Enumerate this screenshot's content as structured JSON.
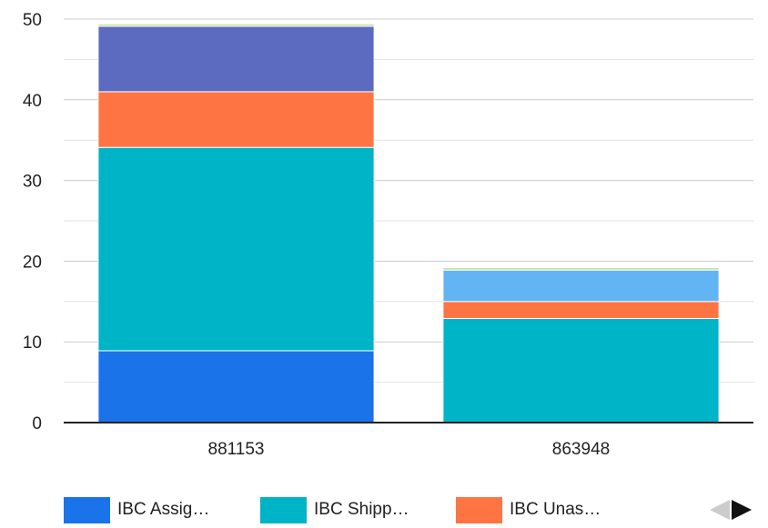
{
  "chart_data": {
    "type": "bar",
    "stacked": true,
    "categories": [
      "881153",
      "863948"
    ],
    "ylim": [
      0,
      50
    ],
    "yticks": [
      0,
      10,
      20,
      30,
      40,
      50
    ],
    "grid": true,
    "series": [
      {
        "name": "IBC Assig…",
        "color": "#1a73e8",
        "values": [
          8.9,
          0
        ]
      },
      {
        "name": "IBC Shipp…",
        "color": "#00b4c8",
        "values": [
          25.2,
          12.9
        ]
      },
      {
        "name": "IBC Unas…",
        "color": "#ff7443",
        "values": [
          6.9,
          2.1
        ]
      },
      {
        "color": "#5c6bc0",
        "values": [
          8.1,
          0
        ]
      },
      {
        "color": "#63b4f3",
        "values": [
          0,
          3.9
        ]
      },
      {
        "color": "#c5e1a5",
        "values": [
          0.3,
          0.3
        ]
      }
    ]
  },
  "legend": {
    "items": [
      {
        "label": "IBC Assig…",
        "color": "#1a73e8"
      },
      {
        "label": "IBC Shipp…",
        "color": "#00b4c8"
      },
      {
        "label": "IBC Unas…",
        "color": "#ff7443"
      }
    ]
  }
}
